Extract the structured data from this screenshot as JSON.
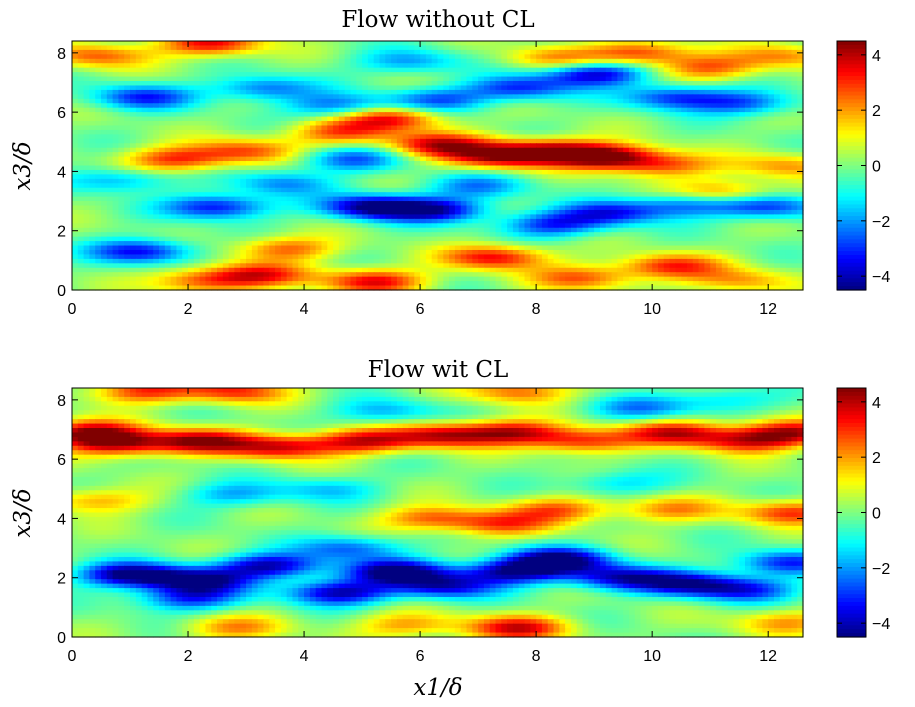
{
  "chart_data": [
    {
      "type": "heatmap",
      "title": "Flow without CL",
      "ylabel": "x3/δ",
      "xlabel": "",
      "xlim": [
        0,
        12.6
      ],
      "ylim": [
        0,
        8.4
      ],
      "xticks": [
        "0",
        "2",
        "4",
        "6",
        "8",
        "10",
        "12"
      ],
      "yticks": [
        "0",
        "2",
        "4",
        "6",
        "8"
      ],
      "colorbar": {
        "clim": [
          -4.5,
          4.5
        ],
        "ticks": [
          "−4",
          "−2",
          "0",
          "2",
          "4"
        ],
        "colormap": "jet"
      },
      "blobs": [
        {
          "x": 5.2,
          "y": 0.3,
          "v": 3.5
        },
        {
          "x": 3.2,
          "y": 0.5,
          "v": 3.0
        },
        {
          "x": 2.2,
          "y": 0.3,
          "v": 2.5
        },
        {
          "x": 7.3,
          "y": 1.1,
          "v": 3.5
        },
        {
          "x": 8.8,
          "y": 0.4,
          "v": 2.5
        },
        {
          "x": 10.3,
          "y": 0.8,
          "v": 3.0
        },
        {
          "x": 11.5,
          "y": 0.3,
          "v": 2.0
        },
        {
          "x": 3.7,
          "y": 1.4,
          "v": 2.5
        },
        {
          "x": 1.2,
          "y": 1.3,
          "v": -3.5
        },
        {
          "x": 2.5,
          "y": 2.8,
          "v": -3.5
        },
        {
          "x": 5.2,
          "y": 2.8,
          "v": -4.5
        },
        {
          "x": 6.3,
          "y": 2.7,
          "v": -3.5
        },
        {
          "x": 8.3,
          "y": 2.2,
          "v": -3.0
        },
        {
          "x": 9.3,
          "y": 2.6,
          "v": -3.0
        },
        {
          "x": 10.6,
          "y": 2.9,
          "v": -2.5
        },
        {
          "x": 12.0,
          "y": 2.8,
          "v": -3.0
        },
        {
          "x": 0.8,
          "y": 3.7,
          "v": -2.0
        },
        {
          "x": 1.8,
          "y": 4.4,
          "v": 3.0
        },
        {
          "x": 3.0,
          "y": 4.7,
          "v": 2.5
        },
        {
          "x": 4.6,
          "y": 5.3,
          "v": 2.5
        },
        {
          "x": 5.5,
          "y": 5.8,
          "v": 3.5
        },
        {
          "x": 6.3,
          "y": 4.9,
          "v": 3.5
        },
        {
          "x": 7.3,
          "y": 4.5,
          "v": 3.5
        },
        {
          "x": 8.2,
          "y": 4.7,
          "v": 3.5
        },
        {
          "x": 9.2,
          "y": 4.5,
          "v": 4.5
        },
        {
          "x": 10.2,
          "y": 4.2,
          "v": 2.5
        },
        {
          "x": 11.2,
          "y": 3.3,
          "v": 2.5
        },
        {
          "x": 12.3,
          "y": 4.2,
          "v": 2.0
        },
        {
          "x": 3.6,
          "y": 3.6,
          "v": -2.0
        },
        {
          "x": 4.8,
          "y": 4.4,
          "v": -2.5
        },
        {
          "x": 1.2,
          "y": 6.5,
          "v": -3.0
        },
        {
          "x": 3.3,
          "y": 6.8,
          "v": -2.5
        },
        {
          "x": 4.6,
          "y": 6.2,
          "v": -2.5
        },
        {
          "x": 6.3,
          "y": 6.4,
          "v": -2.5
        },
        {
          "x": 7.7,
          "y": 6.8,
          "v": -3.0
        },
        {
          "x": 9.0,
          "y": 7.3,
          "v": -4.0
        },
        {
          "x": 10.4,
          "y": 6.5,
          "v": -3.0
        },
        {
          "x": 11.6,
          "y": 6.3,
          "v": -2.5
        },
        {
          "x": 2.4,
          "y": 8.3,
          "v": 3.5
        },
        {
          "x": 0.4,
          "y": 7.9,
          "v": 2.5
        },
        {
          "x": 9.8,
          "y": 8.0,
          "v": 3.0
        },
        {
          "x": 11.0,
          "y": 7.5,
          "v": 2.5
        },
        {
          "x": 12.3,
          "y": 7.9,
          "v": 2.0
        },
        {
          "x": 8.3,
          "y": 7.8,
          "v": 2.0
        },
        {
          "x": 5.8,
          "y": 7.7,
          "v": -2.0
        },
        {
          "x": 7.0,
          "y": 3.5,
          "v": -2.0
        }
      ]
    },
    {
      "type": "heatmap",
      "title": "Flow wit CL",
      "ylabel": "x3/δ",
      "xlabel": "x1/δ",
      "xlim": [
        0,
        12.6
      ],
      "ylim": [
        0,
        8.4
      ],
      "xticks": [
        "0",
        "2",
        "4",
        "6",
        "8",
        "10",
        "12"
      ],
      "yticks": [
        "0",
        "2",
        "4",
        "6",
        "8"
      ],
      "colorbar": {
        "clim": [
          -4.5,
          4.5
        ],
        "ticks": [
          "−4",
          "−2",
          "0",
          "2",
          "4"
        ],
        "colormap": "jet"
      },
      "blobs": [
        {
          "x": 0.8,
          "y": 6.5,
          "v": 3.5
        },
        {
          "x": 2.2,
          "y": 6.6,
          "v": 4.0
        },
        {
          "x": 3.6,
          "y": 6.4,
          "v": 3.5
        },
        {
          "x": 5.0,
          "y": 6.6,
          "v": 3.5
        },
        {
          "x": 6.4,
          "y": 6.8,
          "v": 3.5
        },
        {
          "x": 7.6,
          "y": 6.9,
          "v": 3.5
        },
        {
          "x": 8.8,
          "y": 6.6,
          "v": 3.0
        },
        {
          "x": 10.4,
          "y": 6.9,
          "v": 3.5
        },
        {
          "x": 11.6,
          "y": 6.6,
          "v": 3.0
        },
        {
          "x": 12.4,
          "y": 6.9,
          "v": 3.5
        },
        {
          "x": 0.3,
          "y": 6.9,
          "v": 4.0
        },
        {
          "x": 1.0,
          "y": 2.1,
          "v": -4.5
        },
        {
          "x": 2.2,
          "y": 1.9,
          "v": -4.0
        },
        {
          "x": 3.4,
          "y": 2.4,
          "v": -4.0
        },
        {
          "x": 4.6,
          "y": 1.5,
          "v": -4.0
        },
        {
          "x": 5.6,
          "y": 2.2,
          "v": -4.5
        },
        {
          "x": 6.4,
          "y": 1.7,
          "v": -3.5
        },
        {
          "x": 7.6,
          "y": 2.2,
          "v": -4.0
        },
        {
          "x": 8.4,
          "y": 2.6,
          "v": -4.5
        },
        {
          "x": 9.4,
          "y": 2.0,
          "v": -3.5
        },
        {
          "x": 10.6,
          "y": 1.8,
          "v": -3.5
        },
        {
          "x": 11.6,
          "y": 1.6,
          "v": -3.0
        },
        {
          "x": 12.3,
          "y": 2.5,
          "v": -3.0
        },
        {
          "x": 2.0,
          "y": 1.3,
          "v": -3.0
        },
        {
          "x": 4.8,
          "y": 3.0,
          "v": -2.5
        },
        {
          "x": 6.2,
          "y": 4.0,
          "v": 2.5
        },
        {
          "x": 7.4,
          "y": 3.8,
          "v": 2.5
        },
        {
          "x": 8.4,
          "y": 4.3,
          "v": 2.5
        },
        {
          "x": 10.3,
          "y": 4.3,
          "v": 2.0
        },
        {
          "x": 12.4,
          "y": 4.2,
          "v": 3.0
        },
        {
          "x": 0.4,
          "y": 4.6,
          "v": 2.0
        },
        {
          "x": 2.8,
          "y": 4.8,
          "v": -1.8
        },
        {
          "x": 4.4,
          "y": 5.0,
          "v": -1.5
        },
        {
          "x": 9.4,
          "y": 5.2,
          "v": -1.5
        },
        {
          "x": 1.2,
          "y": 8.3,
          "v": 3.0
        },
        {
          "x": 2.8,
          "y": 8.3,
          "v": 3.0
        },
        {
          "x": 7.7,
          "y": 8.3,
          "v": 2.5
        },
        {
          "x": 7.7,
          "y": 0.3,
          "v": 3.5
        },
        {
          "x": 5.8,
          "y": 0.4,
          "v": 2.0
        },
        {
          "x": 12.3,
          "y": 0.5,
          "v": 2.0
        },
        {
          "x": 2.8,
          "y": 0.3,
          "v": 2.0
        },
        {
          "x": 9.8,
          "y": 7.7,
          "v": -2.0
        },
        {
          "x": 5.4,
          "y": 7.6,
          "v": -1.8
        },
        {
          "x": 11.2,
          "y": 8.0,
          "v": -1.5
        }
      ]
    }
  ]
}
